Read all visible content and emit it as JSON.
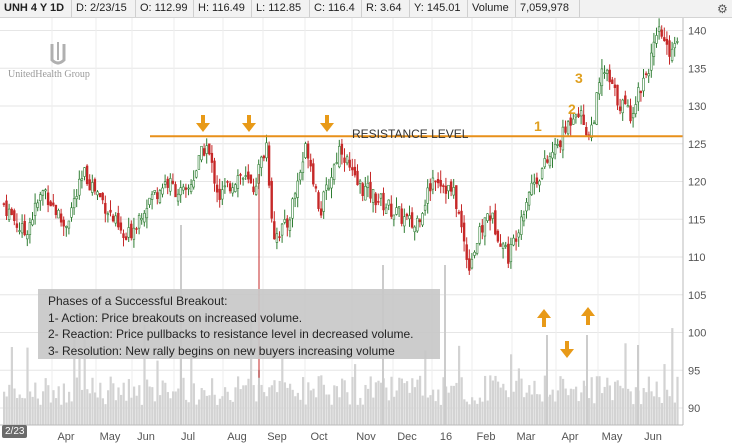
{
  "header": {
    "symbol": "UNH 4 Y 1D",
    "date": "D: 2/23/15",
    "open": "O: 112.99",
    "high": "H: 116.49",
    "low": "L: 112.85",
    "close": "C: 116.4",
    "range": "R: 3.64",
    "year": "Y: 145.01",
    "volume_label": "Volume",
    "volume_value": "7,059,978"
  },
  "logo_text": "UnitedHealth Group",
  "first_date_badge": "2/23",
  "resistance_label": "RESISTANCE LEVEL",
  "notes": {
    "title": "Phases of a Successful Breakout:",
    "line1": "1- Action: Price breakouts on increased volume.",
    "line2": "2- Reaction: Price pullbacks to resistance level in decreased volume.",
    "line3": "3- Resolution: New rally begins on new buyers increasing volume"
  },
  "colors": {
    "up": "#2e7d32",
    "down": "#c62828",
    "resistance": "#e8901a",
    "arrow": "#e89a18",
    "volume": "#d3d3d3"
  },
  "chart_data": {
    "type": "candlestick",
    "title": "",
    "xlabel": "",
    "ylabel": "",
    "ylim": [
      88,
      143
    ],
    "y_ticks": [
      90,
      95,
      100,
      105,
      110,
      115,
      120,
      125,
      130,
      135,
      140
    ],
    "x_ticks": [
      "Apr",
      "May",
      "Jun",
      "Jul",
      "Aug",
      "Sep",
      "Oct",
      "Nov",
      "Dec",
      "16",
      "Feb",
      "Mar",
      "Apr",
      "May",
      "Jun"
    ],
    "resistance_level": 126,
    "close_path": [
      {
        "t": 0,
        "v": 117
      },
      {
        "t": 0.03,
        "v": 113
      },
      {
        "t": 0.06,
        "v": 119
      },
      {
        "t": 0.09,
        "v": 114
      },
      {
        "t": 0.12,
        "v": 121
      },
      {
        "t": 0.15,
        "v": 117
      },
      {
        "t": 0.18,
        "v": 112
      },
      {
        "t": 0.21,
        "v": 117
      },
      {
        "t": 0.24,
        "v": 120
      },
      {
        "t": 0.27,
        "v": 118
      },
      {
        "t": 0.3,
        "v": 125
      },
      {
        "t": 0.32,
        "v": 118
      },
      {
        "t": 0.35,
        "v": 121
      },
      {
        "t": 0.37,
        "v": 119
      },
      {
        "t": 0.39,
        "v": 125
      },
      {
        "t": 0.4,
        "v": 113
      },
      {
        "t": 0.42,
        "v": 114
      },
      {
        "t": 0.45,
        "v": 125
      },
      {
        "t": 0.47,
        "v": 116
      },
      {
        "t": 0.5,
        "v": 125
      },
      {
        "t": 0.52,
        "v": 120
      },
      {
        "t": 0.55,
        "v": 118
      },
      {
        "t": 0.58,
        "v": 116
      },
      {
        "t": 0.61,
        "v": 114
      },
      {
        "t": 0.64,
        "v": 121
      },
      {
        "t": 0.67,
        "v": 118
      },
      {
        "t": 0.69,
        "v": 109
      },
      {
        "t": 0.72,
        "v": 116
      },
      {
        "t": 0.75,
        "v": 110
      },
      {
        "t": 0.78,
        "v": 119
      },
      {
        "t": 0.81,
        "v": 123
      },
      {
        "t": 0.83,
        "v": 126
      },
      {
        "t": 0.85,
        "v": 130
      },
      {
        "t": 0.87,
        "v": 126
      },
      {
        "t": 0.89,
        "v": 135
      },
      {
        "t": 0.91,
        "v": 131
      },
      {
        "t": 0.93,
        "v": 129
      },
      {
        "t": 0.96,
        "v": 136
      },
      {
        "t": 0.975,
        "v": 140
      },
      {
        "t": 0.985,
        "v": 137
      },
      {
        "t": 1.0,
        "v": 139
      }
    ],
    "down_arrows_near_resistance": 3,
    "phase_labels": [
      "1",
      "2",
      "3"
    ]
  }
}
